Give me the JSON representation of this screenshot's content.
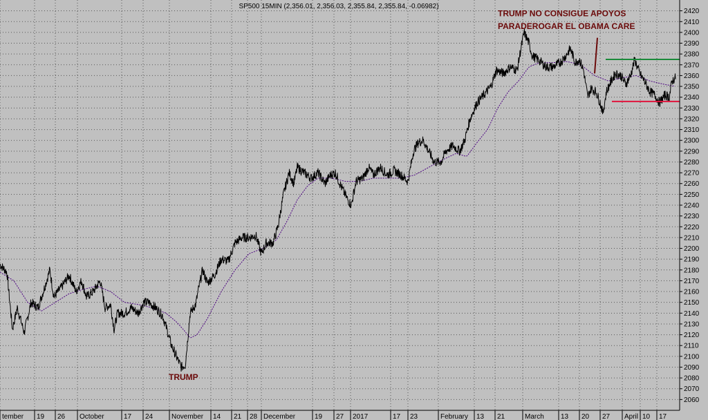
{
  "chart_data": {
    "type": "line",
    "title": "SP500 15MIN (2,356.01, 2,356.03, 2,355.84, 2,355.84, -0.06982)",
    "ylim": [
      2050,
      2430
    ],
    "y_ticks": [
      2060,
      2070,
      2080,
      2090,
      2100,
      2110,
      2120,
      2130,
      2140,
      2150,
      2160,
      2170,
      2180,
      2190,
      2200,
      2210,
      2220,
      2230,
      2240,
      2250,
      2260,
      2270,
      2280,
      2290,
      2300,
      2310,
      2320,
      2330,
      2340,
      2350,
      2360,
      2370,
      2380,
      2390,
      2400,
      2410,
      2420
    ],
    "x_ticks": [
      {
        "label": "tember",
        "i": 0
      },
      {
        "label": "19",
        "i": 50
      },
      {
        "label": "26",
        "i": 80
      },
      {
        "label": "October",
        "i": 112
      },
      {
        "label": "17",
        "i": 176
      },
      {
        "label": "24",
        "i": 207
      },
      {
        "label": "November",
        "i": 245
      },
      {
        "label": "14",
        "i": 305
      },
      {
        "label": "21",
        "i": 335
      },
      {
        "label": "28",
        "i": 358
      },
      {
        "label": "December",
        "i": 378
      },
      {
        "label": "19",
        "i": 452
      },
      {
        "label": "27",
        "i": 483
      },
      {
        "label": "2017",
        "i": 507
      },
      {
        "label": "17",
        "i": 565
      },
      {
        "label": "23",
        "i": 590
      },
      {
        "label": "February",
        "i": 634
      },
      {
        "label": "13",
        "i": 686
      },
      {
        "label": "21",
        "i": 716
      },
      {
        "label": "March",
        "i": 756
      },
      {
        "label": "13",
        "i": 808
      },
      {
        "label": "20",
        "i": 838
      },
      {
        "label": "27",
        "i": 868
      },
      {
        "label": "April",
        "i": 900
      },
      {
        "label": "10",
        "i": 926
      },
      {
        "label": "17",
        "i": 950
      }
    ],
    "price_keypoints": [
      [
        0,
        2185
      ],
      [
        10,
        2178
      ],
      [
        18,
        2125
      ],
      [
        25,
        2145
      ],
      [
        35,
        2122
      ],
      [
        45,
        2150
      ],
      [
        55,
        2145
      ],
      [
        65,
        2165
      ],
      [
        72,
        2180
      ],
      [
        78,
        2155
      ],
      [
        90,
        2165
      ],
      [
        100,
        2175
      ],
      [
        110,
        2160
      ],
      [
        118,
        2170
      ],
      [
        125,
        2155
      ],
      [
        135,
        2160
      ],
      [
        145,
        2170
      ],
      [
        152,
        2145
      ],
      [
        160,
        2148
      ],
      [
        165,
        2125
      ],
      [
        170,
        2140
      ],
      [
        180,
        2140
      ],
      [
        190,
        2145
      ],
      [
        200,
        2140
      ],
      [
        208,
        2150
      ],
      [
        215,
        2150
      ],
      [
        225,
        2145
      ],
      [
        235,
        2138
      ],
      [
        240,
        2128
      ],
      [
        248,
        2110
      ],
      [
        255,
        2100
      ],
      [
        262,
        2090
      ],
      [
        268,
        2092
      ],
      [
        275,
        2140
      ],
      [
        283,
        2148
      ],
      [
        288,
        2165
      ],
      [
        293,
        2180
      ],
      [
        300,
        2168
      ],
      [
        310,
        2175
      ],
      [
        320,
        2190
      ],
      [
        330,
        2188
      ],
      [
        340,
        2205
      ],
      [
        350,
        2210
      ],
      [
        360,
        2210
      ],
      [
        370,
        2212
      ],
      [
        378,
        2195
      ],
      [
        385,
        2205
      ],
      [
        395,
        2205
      ],
      [
        402,
        2220
      ],
      [
        410,
        2250
      ],
      [
        418,
        2270
      ],
      [
        425,
        2260
      ],
      [
        430,
        2275
      ],
      [
        440,
        2270
      ],
      [
        450,
        2265
      ],
      [
        460,
        2270
      ],
      [
        470,
        2260
      ],
      [
        478,
        2268
      ],
      [
        485,
        2270
      ],
      [
        495,
        2255
      ],
      [
        503,
        2245
      ],
      [
        508,
        2240
      ],
      [
        515,
        2262
      ],
      [
        525,
        2265
      ],
      [
        533,
        2275
      ],
      [
        540,
        2268
      ],
      [
        550,
        2275
      ],
      [
        560,
        2268
      ],
      [
        570,
        2272
      ],
      [
        580,
        2268
      ],
      [
        590,
        2262
      ],
      [
        598,
        2290
      ],
      [
        605,
        2298
      ],
      [
        612,
        2300
      ],
      [
        620,
        2290
      ],
      [
        628,
        2280
      ],
      [
        638,
        2280
      ],
      [
        645,
        2290
      ],
      [
        655,
        2295
      ],
      [
        665,
        2290
      ],
      [
        672,
        2300
      ],
      [
        680,
        2320
      ],
      [
        690,
        2335
      ],
      [
        700,
        2342
      ],
      [
        710,
        2350
      ],
      [
        718,
        2365
      ],
      [
        728,
        2362
      ],
      [
        738,
        2368
      ],
      [
        748,
        2365
      ],
      [
        752,
        2380
      ],
      [
        758,
        2400
      ],
      [
        765,
        2390
      ],
      [
        770,
        2378
      ],
      [
        778,
        2375
      ],
      [
        790,
        2368
      ],
      [
        800,
        2368
      ],
      [
        810,
        2372
      ],
      [
        818,
        2378
      ],
      [
        825,
        2385
      ],
      [
        832,
        2372
      ],
      [
        838,
        2375
      ],
      [
        844,
        2365
      ],
      [
        850,
        2340
      ],
      [
        855,
        2348
      ],
      [
        862,
        2345
      ],
      [
        868,
        2335
      ],
      [
        872,
        2325
      ],
      [
        877,
        2345
      ],
      [
        884,
        2355
      ],
      [
        890,
        2362
      ],
      [
        898,
        2360
      ],
      [
        905,
        2352
      ],
      [
        912,
        2360
      ],
      [
        918,
        2375
      ],
      [
        925,
        2362
      ],
      [
        932,
        2355
      ],
      [
        940,
        2345
      ],
      [
        947,
        2342
      ],
      [
        954,
        2335
      ],
      [
        962,
        2342
      ],
      [
        968,
        2340
      ],
      [
        972,
        2355
      ],
      [
        977,
        2358
      ]
    ],
    "ma_keypoints": [
      [
        0,
        2178
      ],
      [
        20,
        2170
      ],
      [
        40,
        2150
      ],
      [
        60,
        2142
      ],
      [
        80,
        2150
      ],
      [
        100,
        2158
      ],
      [
        120,
        2162
      ],
      [
        140,
        2165
      ],
      [
        160,
        2160
      ],
      [
        180,
        2150
      ],
      [
        200,
        2148
      ],
      [
        220,
        2145
      ],
      [
        240,
        2140
      ],
      [
        255,
        2132
      ],
      [
        265,
        2125
      ],
      [
        275,
        2117
      ],
      [
        285,
        2120
      ],
      [
        300,
        2135
      ],
      [
        320,
        2160
      ],
      [
        340,
        2180
      ],
      [
        360,
        2195
      ],
      [
        380,
        2200
      ],
      [
        400,
        2208
      ],
      [
        415,
        2225
      ],
      [
        430,
        2245
      ],
      [
        445,
        2258
      ],
      [
        460,
        2265
      ],
      [
        480,
        2265
      ],
      [
        500,
        2262
      ],
      [
        520,
        2262
      ],
      [
        540,
        2265
      ],
      [
        560,
        2265
      ],
      [
        580,
        2265
      ],
      [
        600,
        2268
      ],
      [
        620,
        2275
      ],
      [
        640,
        2282
      ],
      [
        660,
        2288
      ],
      [
        675,
        2285
      ],
      [
        690,
        2298
      ],
      [
        705,
        2310
      ],
      [
        720,
        2330
      ],
      [
        735,
        2345
      ],
      [
        750,
        2355
      ],
      [
        765,
        2368
      ],
      [
        780,
        2372
      ],
      [
        800,
        2372
      ],
      [
        820,
        2373
      ],
      [
        840,
        2370
      ],
      [
        860,
        2360
      ],
      [
        880,
        2355
      ],
      [
        900,
        2358
      ],
      [
        920,
        2360
      ],
      [
        940,
        2355
      ],
      [
        960,
        2352
      ],
      [
        977,
        2350
      ]
    ],
    "lines": [
      {
        "color": "#1a8a3a",
        "y": 2375,
        "i_start": 876,
        "i_end": 983
      },
      {
        "color": "#e0143c",
        "y": 2336,
        "i_start": 885,
        "i_end": 983
      }
    ],
    "annotations": [
      {
        "text": "TRUMP  NO CONSIGUE APOYOS",
        "i": 720,
        "y": 2415
      },
      {
        "text": "PARADEROGAR EL OBAMA CARE",
        "i": 720,
        "y": 2403
      },
      {
        "text": "TRUMP",
        "i": 244,
        "y": 2078
      }
    ],
    "arrow": {
      "i1": 864,
      "y1": 2395,
      "i2": 860,
      "y2": 2362,
      "color": "#6b0a0a"
    },
    "colors": {
      "background": "#c0c0c0",
      "price": "#000000",
      "moving_average": "#4b0082",
      "grid": "#000000"
    },
    "grid": true,
    "y_axis_side": "right"
  }
}
